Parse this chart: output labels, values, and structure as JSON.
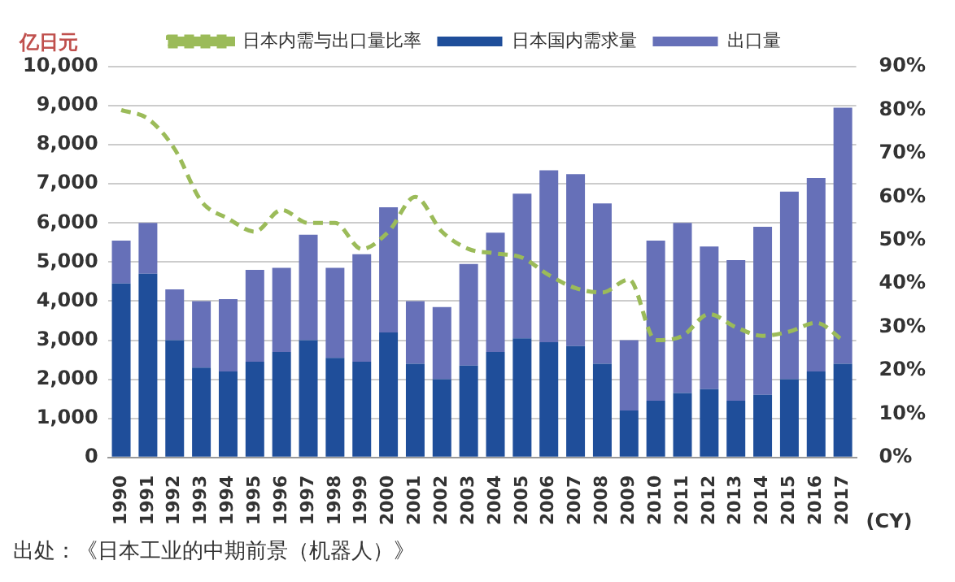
{
  "chart_data": {
    "type": "bar",
    "stacked": true,
    "ylabel": "亿日元",
    "xlabel": "(CY)",
    "legend": "top",
    "grid": "y",
    "categories": [
      "1990",
      "1991",
      "1992",
      "1993",
      "1994",
      "1995",
      "1996",
      "1997",
      "1998",
      "1999",
      "2000",
      "2001",
      "2002",
      "2003",
      "2004",
      "2005",
      "2006",
      "2007",
      "2008",
      "2009",
      "2010",
      "2011",
      "2012",
      "2013",
      "2014",
      "2015",
      "2016",
      "2017"
    ],
    "series": [
      {
        "name": "日本国内需求量",
        "color": "#1f4e9a",
        "values": [
          4450,
          4700,
          3000,
          2300,
          2200,
          2450,
          2700,
          3000,
          2550,
          2450,
          3200,
          2400,
          2000,
          2350,
          2700,
          3050,
          2950,
          2850,
          2400,
          1200,
          1450,
          1650,
          1750,
          1450,
          1600,
          2000,
          2200,
          2400
        ]
      },
      {
        "name": "出口量",
        "color": "#6670b8",
        "values": [
          1100,
          1300,
          1300,
          1700,
          1850,
          2350,
          2150,
          2700,
          2300,
          2750,
          3200,
          1600,
          1850,
          2600,
          3050,
          3700,
          4400,
          4400,
          4100,
          1800,
          4100,
          4350,
          3650,
          3600,
          4300,
          4800,
          4950,
          6550
        ]
      },
      {
        "name": "日本内需与出口量比率",
        "type": "line",
        "axis": "y2",
        "color": "#9bbb59",
        "line_style": "dashed",
        "marker": "none",
        "values": [
          80,
          78,
          71,
          59,
          55,
          52,
          57,
          54,
          54,
          48,
          52,
          60,
          52,
          48,
          47,
          46,
          42,
          39,
          38,
          41,
          27,
          28,
          33,
          30,
          28,
          29,
          31,
          27
        ]
      }
    ],
    "ylim": [
      0,
      10000
    ],
    "yticks": [
      {
        "value": 0,
        "label": "0"
      },
      {
        "value": 1000,
        "label": "1,000"
      },
      {
        "value": 2000,
        "label": "2,000"
      },
      {
        "value": 3000,
        "label": "3,000"
      },
      {
        "value": 4000,
        "label": "4,000"
      },
      {
        "value": 5000,
        "label": "5,000"
      },
      {
        "value": 6000,
        "label": "6,000"
      },
      {
        "value": 7000,
        "label": "7,000"
      },
      {
        "value": 8000,
        "label": "8,000"
      },
      {
        "value": 9000,
        "label": "9,000"
      },
      {
        "value": 10000,
        "label": "10,000"
      }
    ],
    "y2lim": [
      0,
      90
    ],
    "y2ticks": [
      {
        "value": 0,
        "label": "0%"
      },
      {
        "value": 10,
        "label": "10%"
      },
      {
        "value": 20,
        "label": "20%"
      },
      {
        "value": 30,
        "label": "30%"
      },
      {
        "value": 40,
        "label": "40%"
      },
      {
        "value": 50,
        "label": "50%"
      },
      {
        "value": 60,
        "label": "60%"
      },
      {
        "value": 70,
        "label": "70%"
      },
      {
        "value": 80,
        "label": "80%"
      },
      {
        "value": 90,
        "label": "90%"
      }
    ],
    "annotations": [
      "出处：《日本工业的中期前景（机器人）》"
    ]
  }
}
